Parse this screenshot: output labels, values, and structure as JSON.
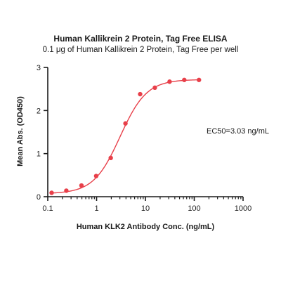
{
  "chart_data": {
    "type": "scatter",
    "title": "Human Kallikrein 2 Protein, Tag Free ELISA",
    "subtitle": "0.1 μg of Human Kallikrein 2 Protein, Tag Free per well",
    "xlabel": "Human KLK2 Antibody Conc. (ng/mL)",
    "ylabel": "Mean Abs. (OD450)",
    "x_scale": "log",
    "xlim": [
      0.1,
      1000
    ],
    "ylim": [
      0,
      3
    ],
    "x_ticks": [
      "0.1",
      "1",
      "10",
      "100",
      "1000"
    ],
    "y_ticks": [
      "0",
      "1",
      "2",
      "3"
    ],
    "annotation": "EC50=3.03 ng/mL",
    "color": "#e8404a",
    "series": [
      {
        "x": [
          0.12,
          0.24,
          0.49,
          0.98,
          1.95,
          3.9,
          7.8,
          15.6,
          31.25,
          62.5,
          125
        ],
        "y": [
          0.09,
          0.14,
          0.26,
          0.48,
          0.9,
          1.7,
          2.38,
          2.53,
          2.67,
          2.71,
          2.71
        ]
      }
    ],
    "fit": {
      "bottom": 0.07,
      "top": 2.72,
      "ec50": 3.03,
      "hill": 1.6
    }
  }
}
